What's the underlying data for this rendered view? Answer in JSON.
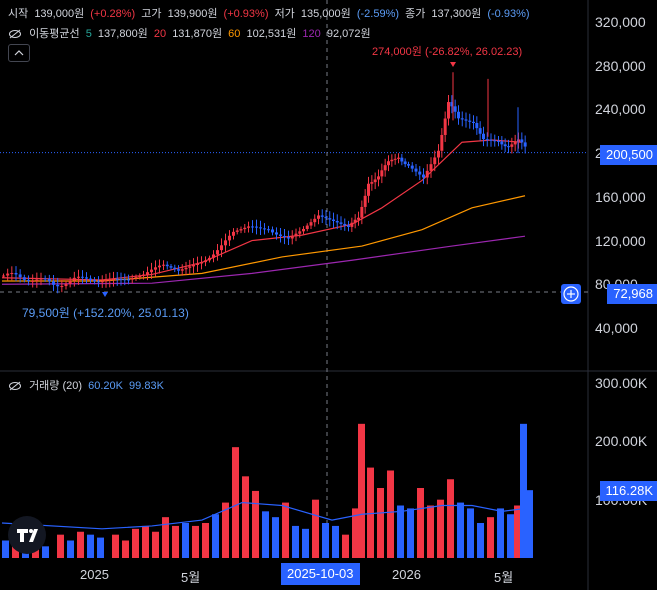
{
  "ohlc": {
    "open_label": "시작",
    "open": "139,000원",
    "open_chg": "(+0.28%)",
    "high_label": "고가",
    "high": "139,900원",
    "high_chg": "(+0.93%)",
    "low_label": "저가",
    "low": "135,000원",
    "low_chg": "(-2.59%)",
    "close_label": "종가",
    "close": "137,300원",
    "close_chg": "(-0.93%)"
  },
  "ma": {
    "label": "이동평균선",
    "p5": "5",
    "v5": "137,800원",
    "p20": "20",
    "v20": "131,870원",
    "p60": "60",
    "v60": "102,531원",
    "p120": "120",
    "v120": "92,072원"
  },
  "volume_legend": {
    "label": "거래량 (20)",
    "v1": "60.20K",
    "v2": "99.83K"
  },
  "annotations": {
    "high": "274,000원 (-26.82%, 26.02.23)",
    "low": "79,500원 (+152.20%, 25.01.13)"
  },
  "badges": {
    "last_price": "200,500",
    "crosshair_price": "72,968",
    "volume_last": "116.28K",
    "crosshair_date": "2025-10-03"
  },
  "price_axis": [
    "320,000",
    "280,000",
    "240,000",
    "200,000",
    "160,000",
    "120,000",
    "80,000",
    "40,000"
  ],
  "volume_axis": [
    "300.00K",
    "200.00K",
    "100.00K"
  ],
  "time_axis": [
    "2025",
    "5월",
    "2026",
    "5월"
  ],
  "colors": {
    "up": "#f23645",
    "down": "#2962ff",
    "ma5": "#26a69a",
    "ma20": "#f23645",
    "ma60": "#ff9800",
    "ma120": "#9c27b0",
    "bg": "#000000"
  },
  "chart_data": {
    "type": "candlestick",
    "price_ticks": [
      320000,
      280000,
      240000,
      200000,
      160000,
      120000,
      80000,
      40000
    ],
    "volume_ticks": [
      300000,
      200000,
      100000
    ],
    "time_ticks": [
      "2025",
      "5월",
      "2026",
      "5월"
    ],
    "last_price": 200500,
    "crosshair_price": 72968,
    "crosshair_date": "2025-10-03",
    "high_point": {
      "value": 274000,
      "date": "26.02.23"
    },
    "low_point": {
      "value": 79500,
      "date": "25.01.13"
    },
    "price_path": [
      [
        0,
        88000
      ],
      [
        25,
        86000
      ],
      [
        50,
        80000
      ],
      [
        75,
        84000
      ],
      [
        95,
        85000
      ],
      [
        110,
        88000
      ],
      [
        125,
        87000
      ],
      [
        140,
        91000
      ],
      [
        160,
        95000
      ],
      [
        175,
        90000
      ],
      [
        190,
        96000
      ],
      [
        210,
        110000
      ],
      [
        230,
        125000
      ],
      [
        245,
        130000
      ],
      [
        265,
        133000
      ],
      [
        285,
        120000
      ],
      [
        300,
        128000
      ],
      [
        315,
        140000
      ],
      [
        330,
        135000
      ],
      [
        345,
        130000
      ],
      [
        355,
        140000
      ],
      [
        365,
        175000
      ],
      [
        375,
        178000
      ],
      [
        385,
        190000
      ],
      [
        395,
        198000
      ],
      [
        405,
        190000
      ],
      [
        420,
        180000
      ],
      [
        435,
        205000
      ],
      [
        445,
        245000
      ],
      [
        455,
        230000
      ],
      [
        470,
        225000
      ],
      [
        480,
        215000
      ],
      [
        495,
        212000
      ],
      [
        505,
        208000
      ],
      [
        515,
        210000
      ],
      [
        525,
        200500
      ]
    ],
    "ma20": [
      [
        0,
        86000
      ],
      [
        100,
        84000
      ],
      [
        150,
        89000
      ],
      [
        200,
        100000
      ],
      [
        250,
        120000
      ],
      [
        300,
        125000
      ],
      [
        350,
        135000
      ],
      [
        380,
        150000
      ],
      [
        420,
        175000
      ],
      [
        460,
        210000
      ],
      [
        490,
        212000
      ],
      [
        520,
        210000
      ]
    ],
    "ma60": [
      [
        0,
        83000
      ],
      [
        100,
        83000
      ],
      [
        200,
        90000
      ],
      [
        280,
        105000
      ],
      [
        360,
        115000
      ],
      [
        420,
        130000
      ],
      [
        470,
        150000
      ],
      [
        523,
        161000
      ]
    ],
    "ma120": [
      [
        0,
        80000
      ],
      [
        150,
        81000
      ],
      [
        250,
        90000
      ],
      [
        350,
        102000
      ],
      [
        450,
        115000
      ],
      [
        523,
        124000
      ]
    ],
    "volume": [
      {
        "x": 0,
        "v": 30000,
        "up": false
      },
      {
        "x": 10,
        "v": 35000,
        "up": true
      },
      {
        "x": 20,
        "v": 30000,
        "up": false
      },
      {
        "x": 30,
        "v": 25000,
        "up": true
      },
      {
        "x": 40,
        "v": 20000,
        "up": false
      },
      {
        "x": 55,
        "v": 40000,
        "up": true
      },
      {
        "x": 65,
        "v": 30000,
        "up": false
      },
      {
        "x": 75,
        "v": 45000,
        "up": true
      },
      {
        "x": 85,
        "v": 40000,
        "up": false
      },
      {
        "x": 95,
        "v": 35000,
        "up": false
      },
      {
        "x": 110,
        "v": 40000,
        "up": true
      },
      {
        "x": 120,
        "v": 30000,
        "up": true
      },
      {
        "x": 130,
        "v": 50000,
        "up": true
      },
      {
        "x": 140,
        "v": 55000,
        "up": true
      },
      {
        "x": 150,
        "v": 45000,
        "up": true
      },
      {
        "x": 160,
        "v": 70000,
        "up": true
      },
      {
        "x": 170,
        "v": 55000,
        "up": true
      },
      {
        "x": 180,
        "v": 60000,
        "up": false
      },
      {
        "x": 190,
        "v": 55000,
        "up": true
      },
      {
        "x": 200,
        "v": 60000,
        "up": true
      },
      {
        "x": 210,
        "v": 75000,
        "up": false
      },
      {
        "x": 220,
        "v": 95000,
        "up": true
      },
      {
        "x": 230,
        "v": 190000,
        "up": true
      },
      {
        "x": 240,
        "v": 140000,
        "up": true
      },
      {
        "x": 250,
        "v": 115000,
        "up": true
      },
      {
        "x": 260,
        "v": 80000,
        "up": false
      },
      {
        "x": 270,
        "v": 70000,
        "up": false
      },
      {
        "x": 280,
        "v": 95000,
        "up": true
      },
      {
        "x": 290,
        "v": 55000,
        "up": false
      },
      {
        "x": 300,
        "v": 50000,
        "up": false
      },
      {
        "x": 310,
        "v": 100000,
        "up": true
      },
      {
        "x": 320,
        "v": 60000,
        "up": false
      },
      {
        "x": 330,
        "v": 55000,
        "up": false
      },
      {
        "x": 340,
        "v": 40000,
        "up": true
      },
      {
        "x": 350,
        "v": 85000,
        "up": true
      },
      {
        "x": 356,
        "v": 230000,
        "up": true
      },
      {
        "x": 365,
        "v": 155000,
        "up": true
      },
      {
        "x": 375,
        "v": 120000,
        "up": true
      },
      {
        "x": 385,
        "v": 150000,
        "up": true
      },
      {
        "x": 395,
        "v": 90000,
        "up": false
      },
      {
        "x": 405,
        "v": 85000,
        "up": false
      },
      {
        "x": 415,
        "v": 120000,
        "up": true
      },
      {
        "x": 425,
        "v": 90000,
        "up": true
      },
      {
        "x": 435,
        "v": 100000,
        "up": true
      },
      {
        "x": 445,
        "v": 135000,
        "up": true
      },
      {
        "x": 455,
        "v": 95000,
        "up": false
      },
      {
        "x": 465,
        "v": 85000,
        "up": false
      },
      {
        "x": 475,
        "v": 60000,
        "up": false
      },
      {
        "x": 485,
        "v": 70000,
        "up": true
      },
      {
        "x": 495,
        "v": 85000,
        "up": false
      },
      {
        "x": 505,
        "v": 75000,
        "up": false
      },
      {
        "x": 512,
        "v": 90000,
        "up": true
      },
      {
        "x": 518,
        "v": 230000,
        "up": false
      },
      {
        "x": 524,
        "v": 116280,
        "up": false
      }
    ],
    "volume_ma": [
      [
        0,
        60000
      ],
      [
        100,
        50000
      ],
      [
        150,
        55000
      ],
      [
        200,
        65000
      ],
      [
        240,
        95000
      ],
      [
        280,
        90000
      ],
      [
        330,
        65000
      ],
      [
        360,
        75000
      ],
      [
        400,
        80000
      ],
      [
        440,
        90000
      ],
      [
        470,
        90000
      ],
      [
        500,
        80000
      ],
      [
        524,
        85000
      ]
    ]
  }
}
